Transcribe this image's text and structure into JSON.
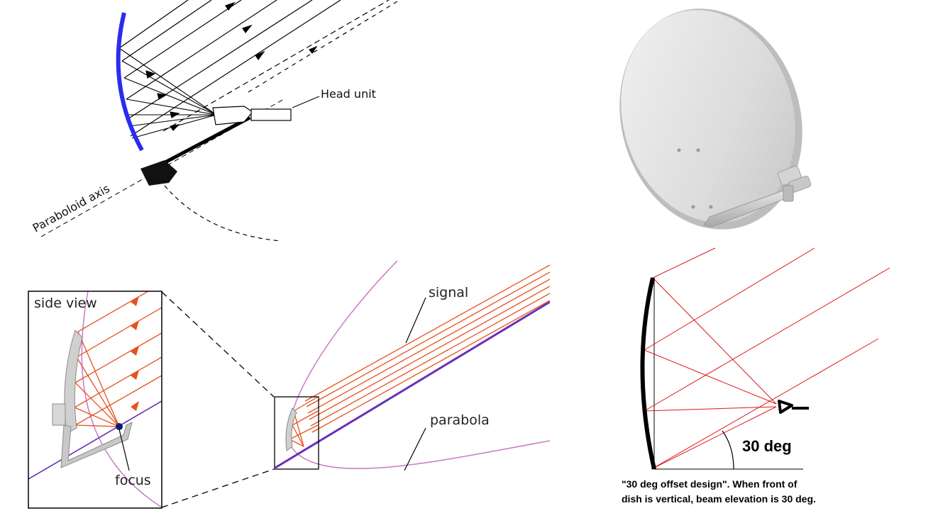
{
  "panel_top_left": {
    "head_unit_label": "Head unit",
    "axis_label": "Paraboloid axis"
  },
  "panel_bottom_left": {
    "side_view_label": "side view",
    "focus_label": "focus",
    "signal_label": "signal",
    "parabola_label": "parabola"
  },
  "panel_bottom_right": {
    "angle_label": "30 deg",
    "caption_line1": "\"30 deg offset design\".  When front of",
    "caption_line2": "dish is vertical, beam elevation is 30 deg."
  },
  "colors": {
    "dish_blue": "#2b2bf0",
    "signal_orange": "#e8501e",
    "parabola_pink": "#c978c9",
    "axis_purple": "#6a2fb8",
    "ray_red": "#e01818",
    "dish_grey": "#d9d9d9"
  },
  "icons": [
    "satellite-dish-photo"
  ]
}
